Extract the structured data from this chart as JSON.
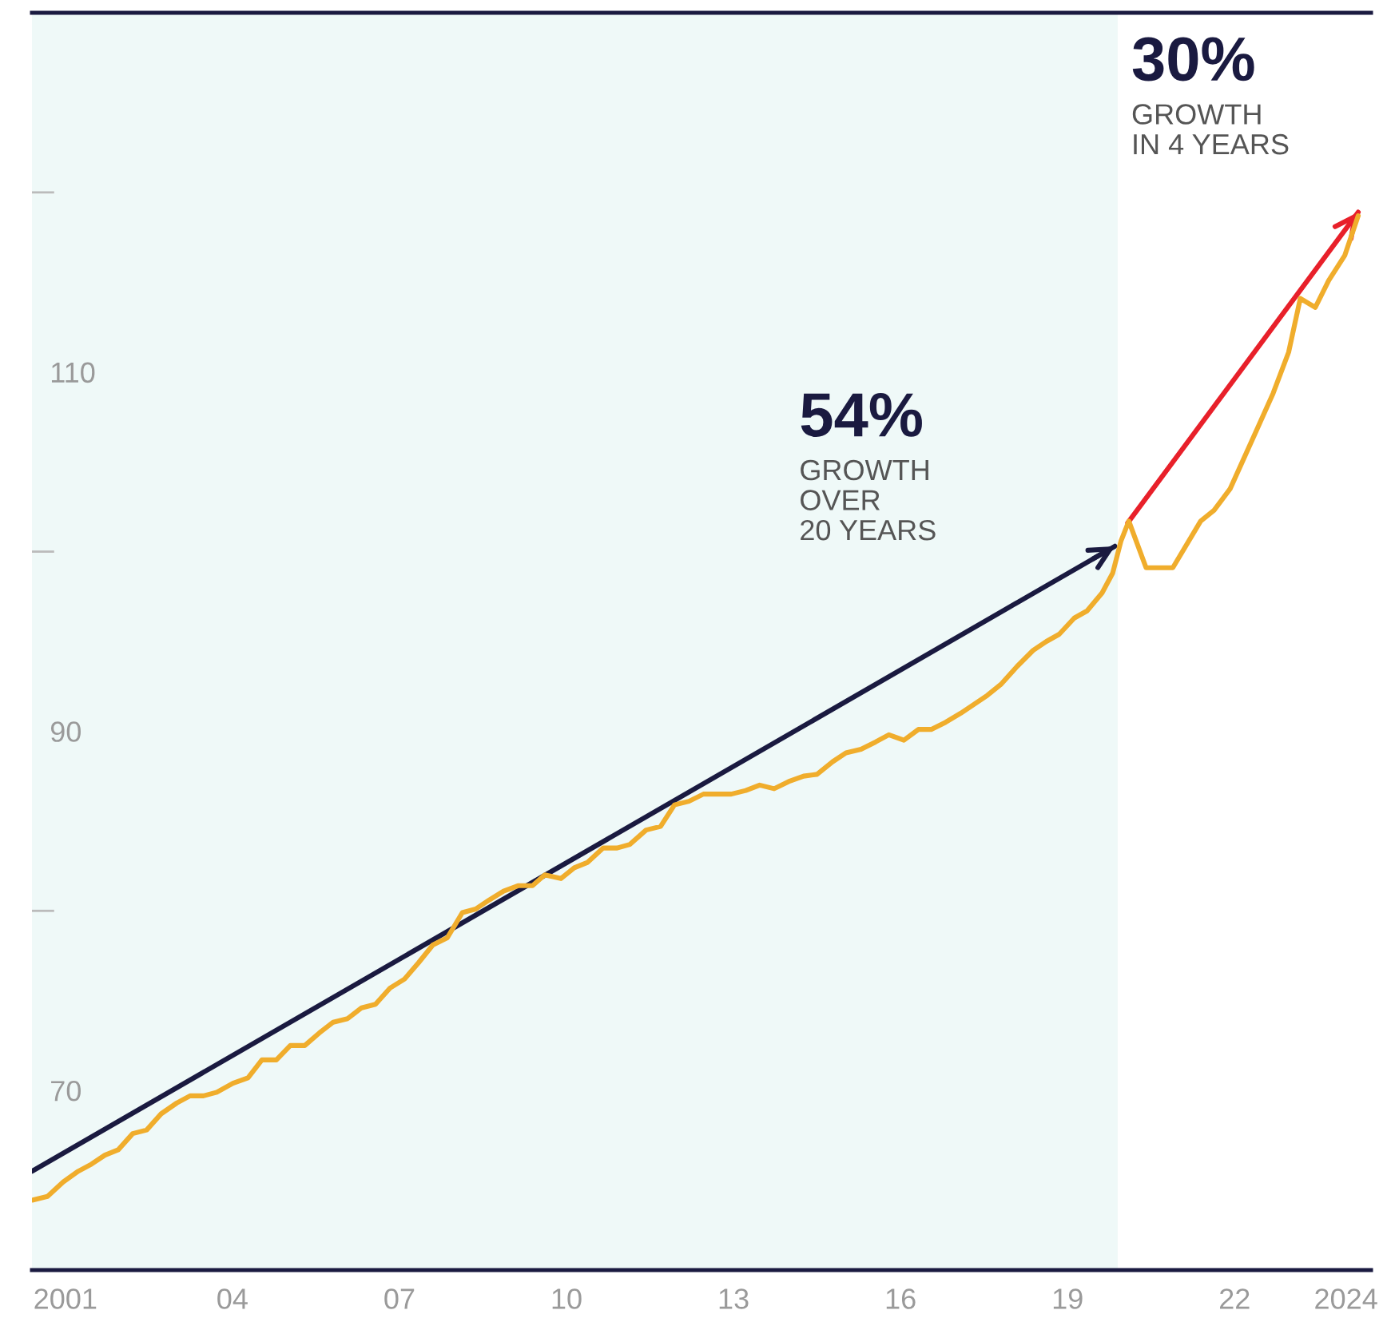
{
  "chart_data": {
    "type": "line",
    "series": [
      {
        "color": "#f0ad2c",
        "x": [
          2000.42,
          2000.68,
          2000.96,
          2001.23,
          2001.47,
          2001.71,
          2001.95,
          2002.21,
          2002.46,
          2002.72,
          2003.0,
          2003.24,
          2003.48,
          2003.72,
          2004.01,
          2004.28,
          2004.53,
          2004.79,
          2005.04,
          2005.3,
          2005.56,
          2005.81,
          2006.07,
          2006.32,
          2006.57,
          2006.83,
          2007.09,
          2007.34,
          2007.6,
          2007.86,
          2008.13,
          2008.37,
          2008.61,
          2008.87,
          2009.13,
          2009.39,
          2009.61,
          2009.9,
          2010.14,
          2010.38,
          2010.66,
          2010.91,
          2011.14,
          2011.43,
          2011.69,
          2011.94,
          2012.2,
          2012.46,
          2012.71,
          2012.96,
          2013.22,
          2013.47,
          2013.73,
          2013.99,
          2014.26,
          2014.5,
          2014.78,
          2015.02,
          2015.29,
          2015.55,
          2015.79,
          2016.06,
          2016.32,
          2016.55,
          2016.81,
          2017.08,
          2017.32,
          2017.56,
          2017.8,
          2018.09,
          2018.38,
          2018.62,
          2018.85,
          2019.12,
          2019.35,
          2019.62,
          2019.81,
          2019.96,
          2020.1,
          2020.41,
          2020.89,
          2021.39,
          2021.63,
          2021.92,
          2022.4,
          2022.69,
          2022.97,
          2023.18,
          2023.45,
          2023.69,
          2023.98,
          2024.22
        ],
        "values": [
          63.9,
          64.1,
          64.9,
          65.5,
          65.9,
          66.4,
          66.7,
          67.6,
          67.8,
          68.7,
          69.3,
          69.7,
          69.7,
          69.9,
          70.4,
          70.7,
          71.7,
          71.7,
          72.5,
          72.5,
          73.2,
          73.8,
          74.0,
          74.6,
          74.8,
          75.7,
          76.2,
          77.1,
          78.1,
          78.5,
          79.9,
          80.1,
          80.6,
          81.1,
          81.4,
          81.4,
          82.0,
          81.8,
          82.4,
          82.7,
          83.5,
          83.5,
          83.7,
          84.5,
          84.7,
          85.9,
          86.1,
          86.5,
          86.5,
          86.5,
          86.7,
          87.0,
          86.8,
          87.2,
          87.5,
          87.6,
          88.3,
          88.8,
          89.0,
          89.4,
          89.8,
          89.5,
          90.1,
          90.1,
          90.5,
          91.0,
          91.5,
          92.0,
          92.6,
          93.6,
          94.5,
          95.0,
          95.4,
          96.3,
          96.7,
          97.7,
          98.8,
          100.6,
          101.7,
          99.1,
          99.1,
          101.7,
          102.3,
          103.5,
          106.8,
          108.8,
          111.1,
          114.1,
          113.6,
          115.1,
          116.5,
          118.7
        ]
      },
      {
        "color": "#1a1a40",
        "x": [
          2000.4,
          2019.85
        ],
        "values": [
          65.5,
          100.3
        ]
      },
      {
        "color": "#e8202a",
        "x": [
          2020.08,
          2024.22
        ],
        "values": [
          101.6,
          118.9
        ]
      }
    ],
    "xlim": [
      2000.4,
      2024.45
    ],
    "xticks": [
      {
        "value": 2001,
        "label": "2001"
      },
      {
        "value": 2004,
        "label": "04"
      },
      {
        "value": 2007,
        "label": "07"
      },
      {
        "value": 2010,
        "label": "10"
      },
      {
        "value": 2013,
        "label": "13"
      },
      {
        "value": 2016,
        "label": "16"
      },
      {
        "value": 2019,
        "label": "19"
      },
      {
        "value": 2022,
        "label": "22"
      },
      {
        "value": 2024,
        "label": "2024"
      }
    ],
    "ylim": [
      60,
      130
    ],
    "yticks": [
      70,
      {
        "value": 80,
        "label": null
      },
      90,
      {
        "value": 100,
        "label": null
      },
      110,
      {
        "value": 120,
        "label": null
      }
    ],
    "bands": [
      {
        "axis": "x",
        "from": 2000.4,
        "to": 2019.9,
        "color": "#eff9f8"
      }
    ],
    "annotations": [
      "54%",
      "GROWTH\nOVER\n20 YEARS",
      "30%",
      "GROWTH\nIN 4 YEARS"
    ],
    "grid": false,
    "legend": false,
    "marker": "none",
    "line_style": "solid"
  }
}
